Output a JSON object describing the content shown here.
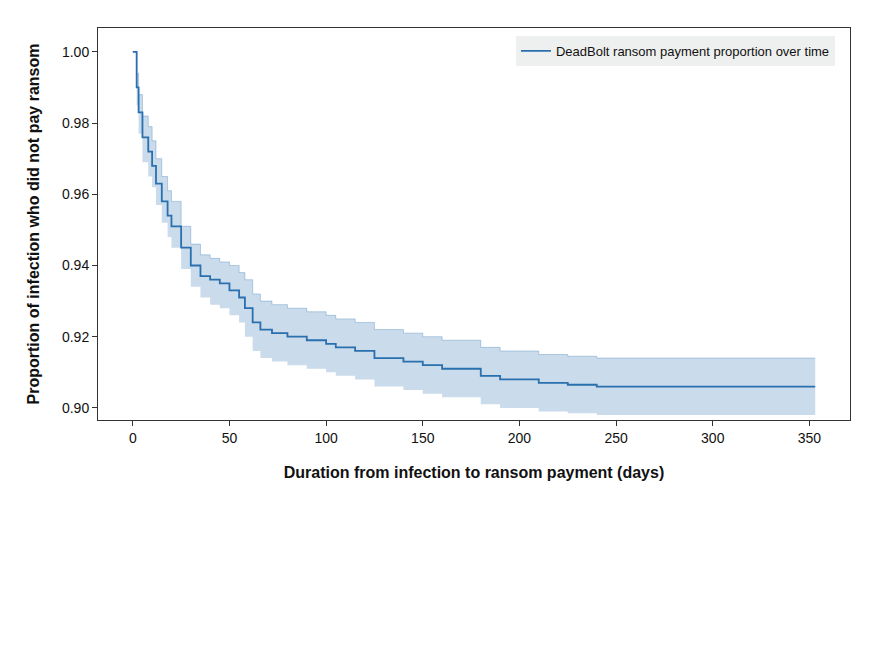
{
  "chart_data": {
    "type": "step",
    "x_label": "Duration from infection to ransom payment (days)",
    "y_label": "Proportion of infection who did not pay ransom",
    "legend": "top right",
    "grid": false,
    "xlim": [
      -18,
      371
    ],
    "xticks": [
      0,
      50,
      100,
      150,
      200,
      250,
      300,
      350
    ],
    "ylim": [
      0.8966,
      1.0067
    ],
    "yticks": [
      {
        "value": 0.9,
        "label": "0.90"
      },
      {
        "value": 0.92,
        "label": "0.92"
      },
      {
        "value": 0.94,
        "label": "0.94"
      },
      {
        "value": 0.96,
        "label": "0.96"
      },
      {
        "value": 0.98,
        "label": "0.98"
      },
      {
        "value": 1.0,
        "label": "1.00"
      }
    ],
    "series": [
      {
        "name": "DeadBolt ransom payment proportion over time",
        "color": "#2a6fae",
        "x": [
          0,
          2,
          3,
          5,
          8,
          10,
          12,
          15,
          18,
          20,
          25,
          30,
          35,
          40,
          45,
          50,
          55,
          58,
          62,
          66,
          72,
          80,
          90,
          100,
          105,
          115,
          125,
          140,
          150,
          160,
          180,
          190,
          200,
          210,
          225,
          240,
          353
        ],
        "values": [
          1.0,
          0.99,
          0.983,
          0.976,
          0.972,
          0.968,
          0.963,
          0.958,
          0.954,
          0.951,
          0.945,
          0.94,
          0.937,
          0.936,
          0.935,
          0.933,
          0.931,
          0.928,
          0.924,
          0.922,
          0.921,
          0.92,
          0.919,
          0.918,
          0.917,
          0.916,
          0.914,
          0.913,
          0.912,
          0.911,
          0.909,
          0.908,
          0.908,
          0.907,
          0.9065,
          0.906,
          0.906
        ],
        "lower": [
          1.0,
          0.985,
          0.977,
          0.969,
          0.965,
          0.962,
          0.957,
          0.952,
          0.948,
          0.945,
          0.939,
          0.934,
          0.931,
          0.929,
          0.928,
          0.926,
          0.924,
          0.92,
          0.916,
          0.914,
          0.913,
          0.912,
          0.911,
          0.91,
          0.909,
          0.908,
          0.906,
          0.905,
          0.904,
          0.903,
          0.901,
          0.9,
          0.9,
          0.899,
          0.8985,
          0.898,
          0.898
        ],
        "upper": [
          1.0,
          0.994,
          0.988,
          0.982,
          0.979,
          0.975,
          0.97,
          0.965,
          0.961,
          0.958,
          0.951,
          0.946,
          0.943,
          0.942,
          0.941,
          0.94,
          0.938,
          0.936,
          0.932,
          0.93,
          0.929,
          0.928,
          0.927,
          0.926,
          0.925,
          0.924,
          0.922,
          0.921,
          0.92,
          0.919,
          0.917,
          0.916,
          0.916,
          0.915,
          0.9145,
          0.914,
          0.914
        ]
      }
    ]
  }
}
